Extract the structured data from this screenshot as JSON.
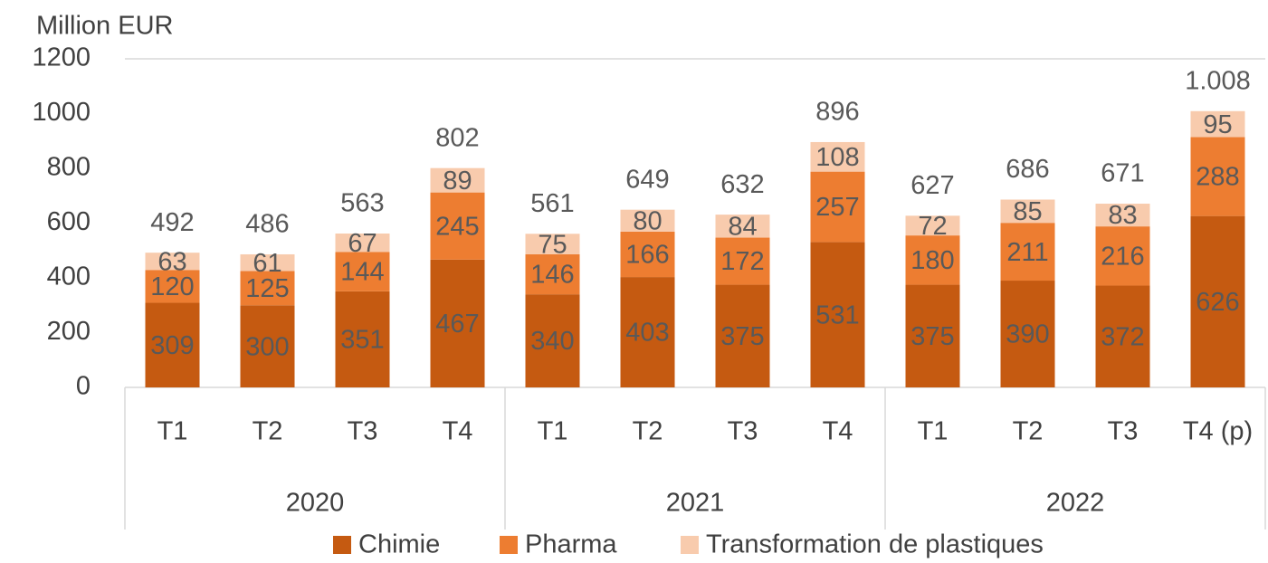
{
  "chart_data": {
    "type": "stacked_bar",
    "ylabel": "Million EUR",
    "categories": [
      "T1",
      "T2",
      "T3",
      "T4",
      "T1",
      "T2",
      "T3",
      "T4",
      "T1",
      "T2",
      "T3",
      "T4 (p)"
    ],
    "groups": [
      {
        "name": "2020",
        "size": 4
      },
      {
        "name": "2021",
        "size": 4
      },
      {
        "name": "2022",
        "size": 4
      }
    ],
    "series": [
      {
        "name": "Chimie",
        "color": "#c55a11",
        "values": [
          309,
          300,
          351,
          467,
          340,
          403,
          375,
          531,
          375,
          390,
          372,
          626
        ]
      },
      {
        "name": "Pharma",
        "color": "#ed7d31",
        "values": [
          120,
          125,
          144,
          245,
          146,
          166,
          172,
          257,
          180,
          211,
          216,
          288
        ]
      },
      {
        "name": "Transformation de plastiques",
        "color": "#f8cbad",
        "values": [
          63,
          61,
          67,
          89,
          75,
          80,
          84,
          108,
          72,
          85,
          83,
          95
        ]
      }
    ],
    "totals": [
      492,
      486,
      563,
      802,
      561,
      649,
      632,
      896,
      627,
      686,
      671,
      {
        "value": 1008,
        "label": "1.008"
      }
    ],
    "ylim": [
      0,
      1200
    ],
    "yticks": [
      0,
      200,
      400,
      600,
      800,
      1000,
      1200
    ],
    "legend": "bottom"
  }
}
